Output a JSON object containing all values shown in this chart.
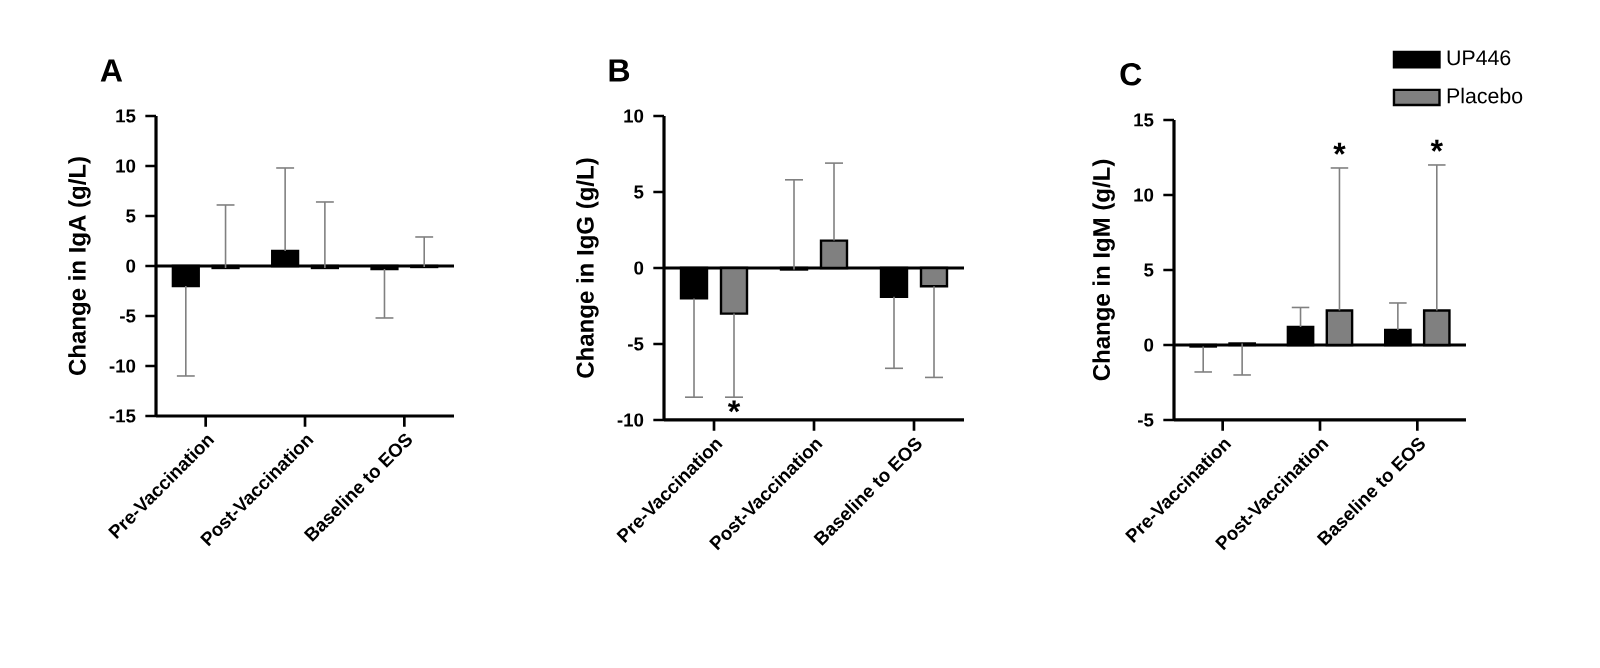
{
  "chart_data": [
    {
      "type": "bar",
      "title": "A",
      "ylabel": "Change in IgA (g/L)",
      "categories": [
        "Pre-Vaccination",
        "Post-Vaccination",
        "Baseline to EOS"
      ],
      "ylim": [
        -15,
        15
      ],
      "yticks": [
        -15,
        -10,
        -5,
        0,
        5,
        10,
        15
      ],
      "legend": false,
      "ref_lines": [
        {
          "axis": "y",
          "value": 0,
          "color": "#000000"
        }
      ],
      "series": [
        {
          "color": "#000000",
          "values": [
            -2,
            1.5,
            -0.3
          ],
          "errors": [
            [
              -11,
              -2
            ],
            [
              1.5,
              9.8
            ],
            [
              -5.2,
              -0.3
            ]
          ]
        },
        {
          "color": "#808080",
          "values": [
            -0.2,
            -0.2,
            -0.1
          ],
          "errors": [
            [
              -0.2,
              6.1
            ],
            [
              -0.2,
              6.4
            ],
            [
              -0.1,
              2.9
            ]
          ]
        }
      ]
    },
    {
      "type": "bar",
      "title": "B",
      "ylabel": "Change in IgG (g/L)",
      "categories": [
        "Pre-Vaccination",
        "Post-Vaccination",
        "Baseline to EOS"
      ],
      "ylim": [
        -10,
        10
      ],
      "yticks": [
        -10,
        -5,
        0,
        5,
        10
      ],
      "legend": false,
      "ref_lines": [
        {
          "axis": "y",
          "value": 0,
          "color": "#000000"
        }
      ],
      "annotations": [
        "*"
      ],
      "series": [
        {
          "color": "#000000",
          "values": [
            -2,
            -0.1,
            -1.9
          ],
          "errors": [
            [
              -8.5,
              -2
            ],
            [
              -0.1,
              5.8
            ],
            [
              -6.6,
              -1.9
            ]
          ]
        },
        {
          "color": "#808080",
          "values": [
            -3,
            1.8,
            -1.2
          ],
          "errors": [
            [
              -8.5,
              -3
            ],
            [
              1.8,
              6.9
            ],
            [
              -7.2,
              -1.2
            ]
          ]
        }
      ]
    },
    {
      "type": "bar",
      "title": "C",
      "ylabel": "Change in IgM (g/L)",
      "categories": [
        "Pre-Vaccination",
        "Post-Vaccination",
        "Baseline to EOS"
      ],
      "ylim": [
        -5,
        15
      ],
      "yticks": [
        -5,
        0,
        5,
        10,
        15
      ],
      "legend": "top right",
      "ref_lines": [
        {
          "axis": "y",
          "value": 0,
          "color": "#000000"
        }
      ],
      "annotations": [
        "*",
        "*"
      ],
      "series": [
        {
          "name": "UP446",
          "color": "#000000",
          "values": [
            -0.1,
            1.2,
            1.0
          ],
          "errors": [
            [
              -1.8,
              -0.1
            ],
            [
              1.2,
              2.5
            ],
            [
              1.0,
              2.8
            ]
          ]
        },
        {
          "name": "Placebo",
          "color": "#808080",
          "values": [
            0.1,
            2.3,
            2.3
          ],
          "errors": [
            [
              -2,
              0.1
            ],
            [
              2.3,
              11.8
            ],
            [
              2.3,
              12
            ]
          ]
        }
      ]
    }
  ]
}
